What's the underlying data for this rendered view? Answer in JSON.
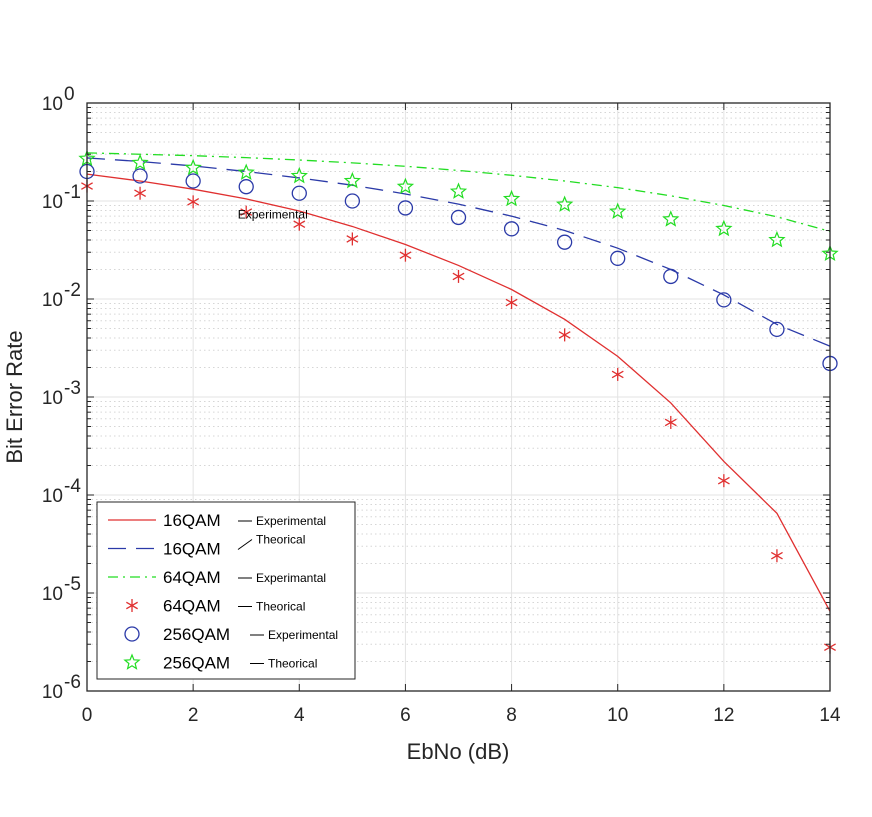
{
  "chart_data": {
    "type": "line",
    "xlabel": "EbNo (dB)",
    "ylabel": "Bit Error Rate",
    "xlim": [
      0,
      14
    ],
    "ylim": [
      1e-06,
      1
    ],
    "yscale": "log",
    "grid": true,
    "minor_grid": true,
    "legend_position": "bottom-left",
    "x_ticks": [
      0,
      2,
      4,
      6,
      8,
      10,
      12,
      14
    ],
    "x_tick_labels": [
      "0",
      "2",
      "4",
      "6",
      "8",
      "10",
      "12",
      "14"
    ],
    "y_ticks": [
      {
        "value": 1e-06,
        "base": "10",
        "exp": "-6"
      },
      {
        "value": 1e-05,
        "base": "10",
        "exp": "-5"
      },
      {
        "value": 0.0001,
        "base": "10",
        "exp": "-4"
      },
      {
        "value": 0.001,
        "base": "10",
        "exp": "-3"
      },
      {
        "value": 0.01,
        "base": "10",
        "exp": "-2"
      },
      {
        "value": 0.1,
        "base": "10",
        "exp": "-1"
      },
      {
        "value": 1,
        "base": "10",
        "exp": "0"
      }
    ],
    "series": [
      {
        "name": "16QAM",
        "style": "solid",
        "marker": "none",
        "color": "#e03030",
        "annotation": "Experimental",
        "x": [
          0,
          1,
          2,
          3,
          4,
          5,
          6,
          7,
          8,
          9,
          10,
          11,
          12,
          13,
          14
        ],
        "values": [
          0.188,
          0.16,
          0.132,
          0.105,
          0.079,
          0.055,
          0.036,
          0.022,
          0.0125,
          0.0062,
          0.0026,
          0.00087,
          0.00022,
          6.5e-05,
          6.5e-06
        ]
      },
      {
        "name": "16QAM",
        "style": "dashed",
        "marker": "none",
        "color": "#2b3aa8",
        "annotation": "Theorical",
        "x": [
          0,
          1,
          2,
          3,
          4,
          5,
          6,
          7,
          8,
          9,
          10,
          11,
          12,
          13,
          14
        ],
        "values": [
          0.275,
          0.253,
          0.228,
          0.2,
          0.172,
          0.145,
          0.118,
          0.093,
          0.07,
          0.05,
          0.033,
          0.02,
          0.011,
          0.0055,
          0.0033
        ]
      },
      {
        "name": "64QAM",
        "style": "dashdot",
        "marker": "none",
        "color": "#22dd22",
        "annotation": "Experimantal",
        "x": [
          0,
          1,
          2,
          3,
          4,
          5,
          6,
          7,
          8,
          9,
          10,
          11,
          12,
          13,
          14
        ],
        "values": [
          0.31,
          0.3,
          0.29,
          0.277,
          0.262,
          0.245,
          0.226,
          0.205,
          0.183,
          0.16,
          0.137,
          0.113,
          0.09,
          0.069,
          0.049
        ]
      },
      {
        "name": "64QAM",
        "style": "none",
        "marker": "asterisk",
        "color": "#e03030",
        "annotation": "Theorical",
        "x": [
          0,
          1,
          2,
          3,
          4,
          5,
          6,
          7,
          8,
          9,
          10,
          11,
          12,
          13,
          14
        ],
        "values": [
          0.142,
          0.12,
          0.098,
          0.077,
          0.058,
          0.041,
          0.028,
          0.017,
          0.0092,
          0.0043,
          0.0017,
          0.00055,
          0.00014,
          2.4e-05,
          2.8e-06
        ]
      },
      {
        "name": "256QAM",
        "style": "none",
        "marker": "circle",
        "color": "#2b3aa8",
        "annotation": "Experimental",
        "x": [
          0,
          1,
          2,
          3,
          4,
          5,
          6,
          7,
          8,
          9,
          10,
          11,
          12,
          13,
          14
        ],
        "values": [
          0.2,
          0.18,
          0.16,
          0.14,
          0.12,
          0.1,
          0.085,
          0.068,
          0.052,
          0.038,
          0.026,
          0.017,
          0.0098,
          0.0049,
          0.0022
        ]
      },
      {
        "name": "256QAM",
        "style": "none",
        "marker": "star",
        "color": "#22dd22",
        "annotation": "Theorical",
        "x": [
          0,
          1,
          2,
          3,
          4,
          5,
          6,
          7,
          8,
          9,
          10,
          11,
          12,
          13,
          14
        ],
        "values": [
          0.27,
          0.245,
          0.218,
          0.195,
          0.18,
          0.16,
          0.14,
          0.125,
          0.105,
          0.092,
          0.078,
          0.065,
          0.052,
          0.04,
          0.029
        ]
      }
    ],
    "annotations": [
      {
        "text": "Experimental",
        "x": 3.5,
        "y": 0.066
      }
    ]
  }
}
